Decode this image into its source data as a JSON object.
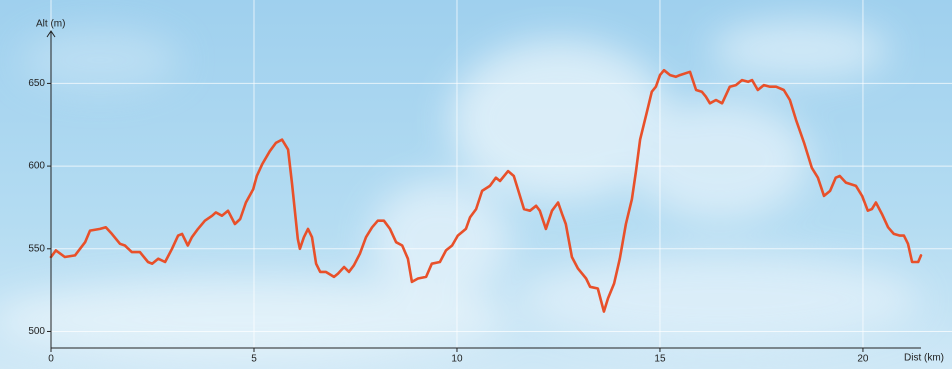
{
  "chart_data": {
    "type": "line",
    "y_label": "Alt (m)",
    "x_label": "Dist (km)",
    "xlim": [
      0,
      21.43
    ],
    "ylim": [
      490,
      695
    ],
    "xticks": [
      0,
      5,
      10,
      15,
      20
    ],
    "yticks": [
      500,
      550,
      600,
      650
    ],
    "grid": true,
    "series": [
      {
        "color": "#e8502a",
        "x": [
          0,
          0.12,
          0.34,
          0.59,
          0.84,
          0.96,
          1.21,
          1.35,
          1.5,
          1.7,
          1.82,
          1.99,
          2.19,
          2.39,
          2.49,
          2.64,
          2.81,
          2.98,
          3.13,
          3.23,
          3.37,
          3.47,
          3.62,
          3.79,
          3.97,
          4.06,
          4.21,
          4.36,
          4.53,
          4.66,
          4.8,
          4.98,
          5.07,
          5.2,
          5.39,
          5.54,
          5.69,
          5.84,
          5.94,
          6.08,
          6.13,
          6.23,
          6.33,
          6.43,
          6.53,
          6.63,
          6.77,
          6.97,
          7.07,
          7.22,
          7.34,
          7.46,
          7.61,
          7.76,
          7.91,
          8.05,
          8.2,
          8.35,
          8.5,
          8.65,
          8.79,
          8.89,
          9.04,
          9.24,
          9.38,
          9.58,
          9.73,
          9.88,
          10.02,
          10.22,
          10.32,
          10.47,
          10.62,
          10.81,
          10.96,
          11.06,
          11.26,
          11.4,
          11.5,
          11.65,
          11.8,
          11.95,
          12.04,
          12.19,
          12.34,
          12.49,
          12.59,
          12.68,
          12.83,
          12.98,
          13.18,
          13.28,
          13.47,
          13.62,
          13.72,
          13.87,
          14.01,
          14.16,
          14.31,
          14.41,
          14.51,
          14.66,
          14.8,
          14.9,
          15.0,
          15.1,
          15.25,
          15.39,
          15.49,
          15.74,
          15.89,
          16.03,
          16.13,
          16.23,
          16.38,
          16.53,
          16.72,
          16.87,
          17.02,
          17.17,
          17.27,
          17.41,
          17.56,
          17.71,
          17.86,
          18.05,
          18.2,
          18.35,
          18.55,
          18.74,
          18.89,
          19.04,
          19.19,
          19.33,
          19.43,
          19.58,
          19.83,
          19.98,
          20.12,
          20.22,
          20.32,
          20.47,
          20.62,
          20.76,
          20.91,
          21.01,
          21.11,
          21.21,
          21.36,
          21.43
        ],
        "values": [
          545,
          549,
          545,
          546,
          554,
          561,
          562,
          563,
          559,
          553,
          552,
          548,
          548,
          542,
          541,
          544,
          542,
          550,
          558,
          559,
          552,
          557,
          562,
          567,
          570,
          572,
          570,
          573,
          565,
          568,
          578,
          586,
          594,
          601,
          609,
          614,
          616,
          610,
          589,
          556,
          550,
          557,
          562,
          557,
          541,
          536,
          536,
          533,
          535,
          539,
          536,
          540,
          547,
          557,
          563,
          567,
          567,
          562,
          554,
          552,
          544,
          530,
          532,
          533,
          541,
          542,
          549,
          552,
          558,
          562,
          569,
          574,
          585,
          588,
          593,
          591,
          597,
          594,
          586,
          574,
          573,
          576,
          573,
          562,
          573,
          578,
          571,
          565,
          545,
          538,
          532,
          527,
          526,
          512,
          520,
          529,
          544,
          565,
          580,
          597,
          616,
          631,
          645,
          648,
          655,
          658,
          655,
          654,
          655,
          657,
          646,
          645,
          642,
          638,
          640,
          638,
          648,
          649,
          652,
          651,
          652,
          646,
          649,
          648,
          648,
          646,
          640,
          628,
          614,
          599,
          593,
          582,
          585,
          593,
          594,
          590,
          588,
          582,
          573,
          574,
          578,
          571,
          563,
          559,
          558,
          558,
          553,
          542,
          542,
          546
        ]
      }
    ]
  }
}
